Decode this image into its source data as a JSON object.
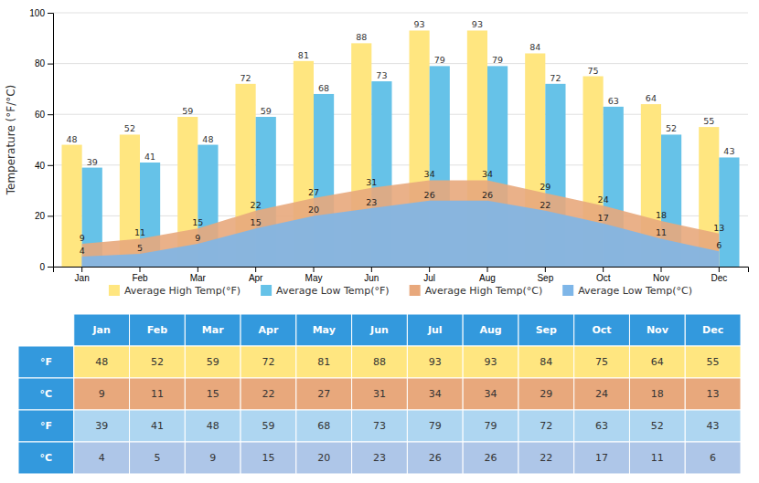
{
  "chart_data": {
    "type": "bar",
    "categories": [
      "Jan",
      "Feb",
      "Mar",
      "Apr",
      "May",
      "Jun",
      "Jul",
      "Aug",
      "Sep",
      "Oct",
      "Nov",
      "Dec"
    ],
    "series": [
      {
        "name": "Average High Temp(°F)",
        "type": "bar",
        "color": "#FFE680",
        "values": [
          48,
          52,
          59,
          72,
          81,
          88,
          93,
          93,
          84,
          75,
          64,
          55
        ]
      },
      {
        "name": "Average Low Temp(°F)",
        "type": "bar",
        "color": "#66C2E8",
        "values": [
          39,
          41,
          48,
          59,
          68,
          73,
          79,
          79,
          72,
          63,
          52,
          43
        ]
      },
      {
        "name": "Average High Temp(°C)",
        "type": "area",
        "color": "#E8A87C",
        "values": [
          9,
          11,
          15,
          22,
          27,
          31,
          34,
          34,
          29,
          24,
          18,
          13
        ]
      },
      {
        "name": "Average Low Temp(°C)",
        "type": "area",
        "color": "#7EB6E8",
        "values": [
          4,
          5,
          9,
          15,
          20,
          23,
          26,
          26,
          22,
          17,
          11,
          6
        ]
      }
    ],
    "ylabel": "Temperature (°F/°C)",
    "ylim": [
      0,
      100
    ],
    "yticks": [
      0,
      20,
      40,
      60,
      80,
      100
    ],
    "grid": true,
    "data_labels": true,
    "legend": "bottom",
    "table": {
      "header_color": "#3399DD",
      "rows": [
        {
          "label": "°F",
          "color": "#FFE680",
          "values": [
            48,
            52,
            59,
            72,
            81,
            88,
            93,
            93,
            84,
            75,
            64,
            55
          ]
        },
        {
          "label": "°C",
          "color": "#E8A87C",
          "values": [
            9,
            11,
            15,
            22,
            27,
            31,
            34,
            34,
            29,
            24,
            18,
            13
          ]
        },
        {
          "label": "°F",
          "color": "#AED6F1",
          "values": [
            39,
            41,
            48,
            59,
            68,
            73,
            79,
            79,
            72,
            63,
            52,
            43
          ]
        },
        {
          "label": "°C",
          "color": "#AEC6E8",
          "values": [
            4,
            5,
            9,
            15,
            20,
            23,
            26,
            26,
            22,
            17,
            11,
            6
          ]
        }
      ]
    }
  }
}
